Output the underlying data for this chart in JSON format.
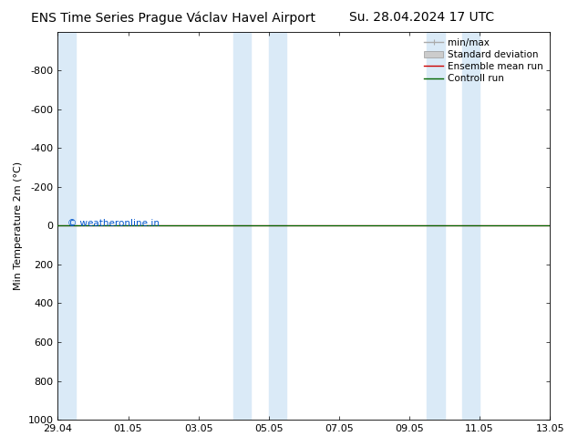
{
  "title_left": "ENS Time Series Prague Václav Havel Airport",
  "title_right": "Su. 28.04.2024 17 UTC",
  "ylabel": "Min Temperature 2m (°C)",
  "ylim_bottom": -1000,
  "ylim_top": 1000,
  "yticks": [
    -800,
    -600,
    -400,
    -200,
    0,
    200,
    400,
    600,
    800,
    1000
  ],
  "xtick_labels": [
    "29.04",
    "01.05",
    "03.05",
    "05.05",
    "07.05",
    "09.05",
    "11.05",
    "13.05"
  ],
  "xtick_positions": [
    0,
    2,
    4,
    6,
    8,
    10,
    12,
    14
  ],
  "shaded_regions": [
    [
      0.0,
      0.5
    ],
    [
      5.0,
      5.5
    ],
    [
      6.0,
      6.5
    ],
    [
      10.5,
      11.0
    ],
    [
      11.5,
      12.0
    ]
  ],
  "shade_color": "#daeaf7",
  "green_line_color": "#006600",
  "red_line_color": "#cc0000",
  "copyright_text": "© weatheronline.in",
  "copyright_color": "#0055cc",
  "background_color": "#ffffff",
  "title_fontsize": 10,
  "axis_label_fontsize": 8,
  "tick_fontsize": 8,
  "legend_fontsize": 7.5
}
